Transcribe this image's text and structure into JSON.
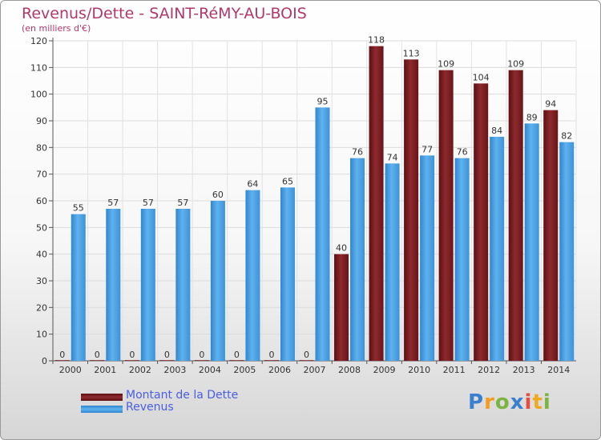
{
  "chart_data": {
    "type": "bar",
    "title": "Revenus/Dette - SAINT-RéMY-AU-BOIS",
    "subtitle": "(en milliers d'€)",
    "categories": [
      "2000",
      "2001",
      "2002",
      "2003",
      "2004",
      "2005",
      "2006",
      "2007",
      "2008",
      "2009",
      "2010",
      "2011",
      "2012",
      "2013",
      "2014"
    ],
    "series": [
      {
        "name": "Montant de la Dette",
        "color": "#7a1a1f",
        "values": [
          0,
          0,
          0,
          0,
          0,
          0,
          0,
          0,
          40,
          118,
          113,
          109,
          104,
          109,
          94
        ]
      },
      {
        "name": "Revenus",
        "color": "#4aa3e6",
        "values": [
          55,
          57,
          57,
          57,
          60,
          64,
          65,
          95,
          76,
          74,
          77,
          76,
          84,
          89,
          82
        ]
      }
    ],
    "ylim": [
      0,
      120
    ],
    "yticks": [
      0,
      10,
      20,
      30,
      40,
      50,
      60,
      70,
      80,
      90,
      100,
      110,
      120
    ],
    "grid": true,
    "legend_position": "bottom-left",
    "data_labels": true
  },
  "logo": {
    "text": "Proxiti",
    "letters": [
      "P",
      "r",
      "o",
      "x",
      "i",
      "t",
      "i"
    ]
  }
}
